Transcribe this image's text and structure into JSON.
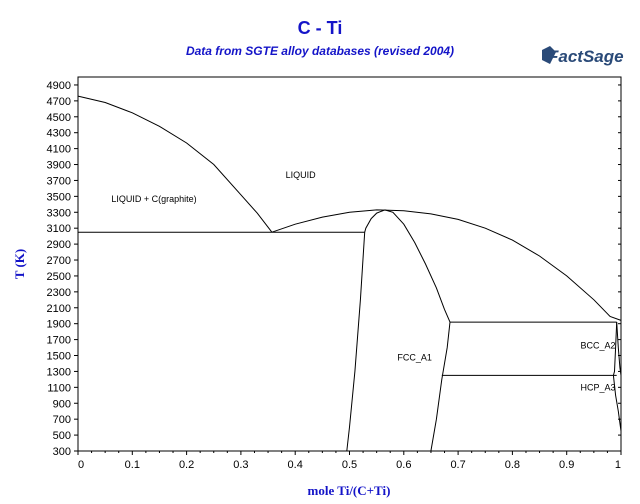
{
  "chart_data": {
    "type": "line",
    "title": "C - Ti",
    "subtitle": "Data from SGTE alloy databases (revised 2004)",
    "logo_text": "FactSage",
    "xlabel": "mole Ti/(C+Ti)",
    "ylabel": "T (K)",
    "xlim": [
      0,
      1
    ],
    "ylim": [
      300,
      5000
    ],
    "xticks": [
      "0",
      "0.1",
      "0.2",
      "0.3",
      "0.4",
      "0.5",
      "0.6",
      "0.7",
      "0.8",
      "0.9",
      "1"
    ],
    "yticks": [
      "300",
      "500",
      "700",
      "900",
      "1100",
      "1300",
      "1500",
      "1700",
      "1900",
      "2100",
      "2300",
      "2500",
      "2700",
      "2900",
      "3100",
      "3300",
      "3500",
      "3700",
      "3900",
      "4100",
      "4300",
      "4500",
      "4700",
      "4900"
    ],
    "grid": false,
    "line_color": "#000000",
    "text_color": "#1414c8",
    "series": [
      {
        "x": [
          0,
          0.05,
          0.1,
          0.15,
          0.2,
          0.25,
          0.3,
          0.33,
          0.357
        ],
        "y": [
          4760,
          4680,
          4550,
          4380,
          4170,
          3900,
          3520,
          3290,
          3050
        ]
      },
      {
        "x": [
          0.357,
          0.4,
          0.45,
          0.5,
          0.55,
          0.6,
          0.65,
          0.7,
          0.75,
          0.8,
          0.85,
          0.9,
          0.95,
          0.98,
          1.0
        ],
        "y": [
          3050,
          3150,
          3240,
          3300,
          3330,
          3320,
          3280,
          3210,
          3100,
          2950,
          2750,
          2500,
          2200,
          1990,
          1941
        ]
      },
      {
        "x": [
          0,
          0.528
        ],
        "y": [
          3050,
          3050
        ]
      },
      {
        "x": [
          0.528,
          0.53,
          0.54,
          0.55,
          0.565
        ],
        "y": [
          3050,
          3100,
          3220,
          3290,
          3330
        ]
      },
      {
        "x": [
          0.565,
          0.58,
          0.6,
          0.62,
          0.64,
          0.66,
          0.675,
          0.685
        ],
        "y": [
          3330,
          3300,
          3150,
          2920,
          2650,
          2350,
          2080,
          1920
        ]
      },
      {
        "x": [
          0.528,
          0.52,
          0.51,
          0.5,
          0.495
        ],
        "y": [
          3050,
          2200,
          1300,
          600,
          300
        ]
      },
      {
        "x": [
          0.685,
          0.68,
          0.67,
          0.66,
          0.65
        ],
        "y": [
          1920,
          1600,
          1200,
          700,
          300
        ]
      },
      {
        "x": [
          0.685,
          0.992
        ],
        "y": [
          1920,
          1920
        ]
      },
      {
        "x": [
          0.67,
          0.992
        ],
        "y": [
          1250,
          1250
        ]
      },
      {
        "x": [
          0.992,
          0.995,
          0.998,
          1.0
        ],
        "y": [
          1920,
          1600,
          1350,
          1250
        ]
      },
      {
        "x": [
          0.992,
          0.99,
          0.988,
          0.986
        ],
        "y": [
          1920,
          1600,
          1300,
          1250
        ]
      },
      {
        "x": [
          0.986,
          0.99,
          0.995,
          0.998,
          1.0
        ],
        "y": [
          1250,
          1000,
          800,
          650,
          550
        ]
      }
    ],
    "annotations": [
      {
        "text": "LIQUID",
        "x": 0.41,
        "y": 3780
      },
      {
        "text": "LIQUID + C(graphite)",
        "x": 0.14,
        "y": 3480
      },
      {
        "text": "FCC_A1",
        "x": 0.62,
        "y": 1490
      },
      {
        "text": "BCC_A2",
        "x": 0.99,
        "y": 1640
      },
      {
        "text": "HCP_A3",
        "x": 0.99,
        "y": 1110
      }
    ]
  }
}
